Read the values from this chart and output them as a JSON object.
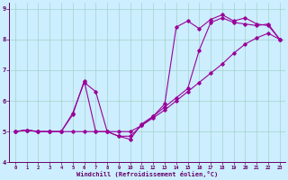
{
  "xlabel": "Windchill (Refroidissement éolien,°C)",
  "bg_color": "#cceeff",
  "line_color": "#990099",
  "xlim": [
    -0.5,
    23.5
  ],
  "ylim": [
    4,
    9.2
  ],
  "xticks": [
    0,
    1,
    2,
    3,
    4,
    5,
    6,
    7,
    8,
    9,
    10,
    11,
    12,
    13,
    14,
    15,
    16,
    17,
    18,
    19,
    20,
    21,
    22,
    23
  ],
  "yticks": [
    4,
    5,
    6,
    7,
    8,
    9
  ],
  "line1_x": [
    0,
    1,
    2,
    3,
    4,
    5,
    6,
    7,
    8,
    9,
    10,
    11,
    12,
    13,
    14,
    15,
    16,
    17,
    18,
    19,
    20,
    21,
    22,
    23
  ],
  "line1_y": [
    5.0,
    5.05,
    5.0,
    5.0,
    5.0,
    5.0,
    5.0,
    5.0,
    5.0,
    5.0,
    5.0,
    5.2,
    5.45,
    5.7,
    6.0,
    6.3,
    6.6,
    6.9,
    7.2,
    7.55,
    7.85,
    8.05,
    8.2,
    8.0
  ],
  "line2_x": [
    0,
    1,
    2,
    3,
    4,
    5,
    6,
    7,
    8,
    9,
    10,
    11,
    12,
    13,
    14,
    15,
    16,
    17,
    18,
    19,
    20,
    21,
    22,
    23
  ],
  "line2_y": [
    5.0,
    5.05,
    5.0,
    5.0,
    5.0,
    5.6,
    6.6,
    6.3,
    5.0,
    4.85,
    4.85,
    5.2,
    5.5,
    5.8,
    6.1,
    6.4,
    7.65,
    8.55,
    8.7,
    8.55,
    8.5,
    8.45,
    8.5,
    8.0
  ],
  "line3_x": [
    0,
    1,
    2,
    3,
    4,
    5,
    6,
    7,
    8,
    9,
    10,
    11,
    12,
    13,
    14,
    15,
    16,
    17,
    18,
    19,
    20,
    21,
    22,
    23
  ],
  "line3_y": [
    5.0,
    5.05,
    5.0,
    5.0,
    5.0,
    5.55,
    6.65,
    5.0,
    5.0,
    4.85,
    4.75,
    5.25,
    5.5,
    5.9,
    8.4,
    8.6,
    8.35,
    8.65,
    8.8,
    8.6,
    8.7,
    8.5,
    8.45,
    8.0
  ]
}
